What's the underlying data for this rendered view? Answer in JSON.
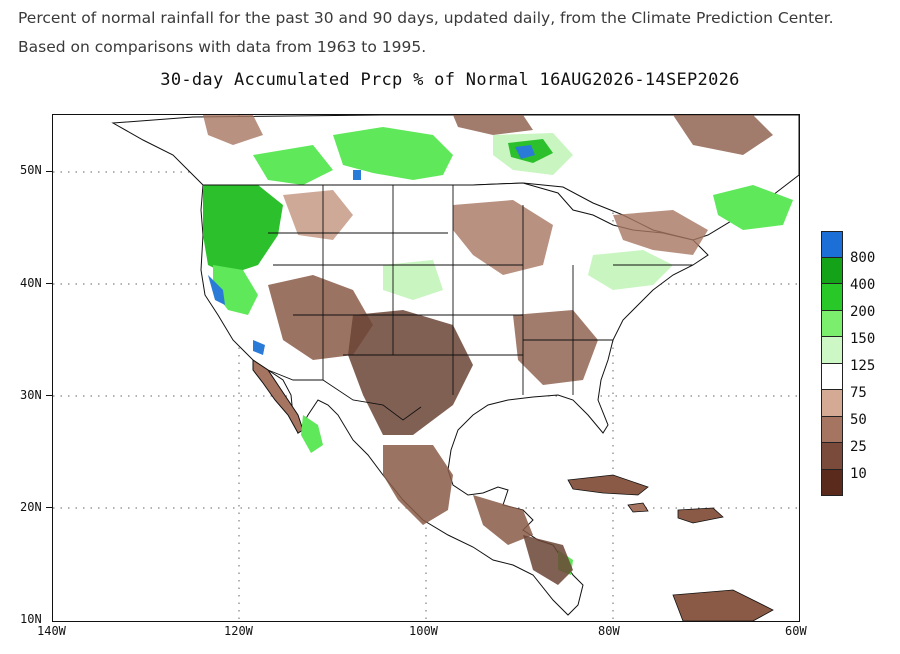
{
  "caption": {
    "line1": "Percent of normal rainfall for the past 30 and 90 days, updated daily, from the Climate Prediction Center.",
    "line2": "Based on comparisons with data from 1963 to 1995."
  },
  "map": {
    "title": "30-day Accumulated Prcp % of Normal 16AUG2026-14SEP2026",
    "lat_labels": [
      "50N",
      "40N",
      "30N",
      "20N",
      "10N"
    ],
    "lon_labels": [
      "140W",
      "120W",
      "100W",
      "80W",
      "60W"
    ],
    "colors": {
      "land_dry_dark": "#6b4436",
      "land_dry": "#8a5a46",
      "land_dry_light": "#c9a08c",
      "land_normal": "#ffffff",
      "wet_light": "#c8f5c0",
      "wet": "#5ee85a",
      "wet_dark": "#2cc02c",
      "very_wet": "#2a7ad8"
    }
  },
  "legend": {
    "items": [
      {
        "label": "800",
        "color": "#1c6fd6"
      },
      {
        "label": "400",
        "color": "#14a218"
      },
      {
        "label": "200",
        "color": "#28c828"
      },
      {
        "label": "150",
        "color": "#7cee6e"
      },
      {
        "label": "125",
        "color": "#cdf8c5"
      },
      {
        "label": "75",
        "color": "#ffffff"
      },
      {
        "label": "50",
        "color": "#d4aa94"
      },
      {
        "label": "25",
        "color": "#a67561"
      },
      {
        "label": "10",
        "color": "#7a4a3a"
      },
      {
        "label": "",
        "color": "#5a2a1c"
      }
    ]
  }
}
